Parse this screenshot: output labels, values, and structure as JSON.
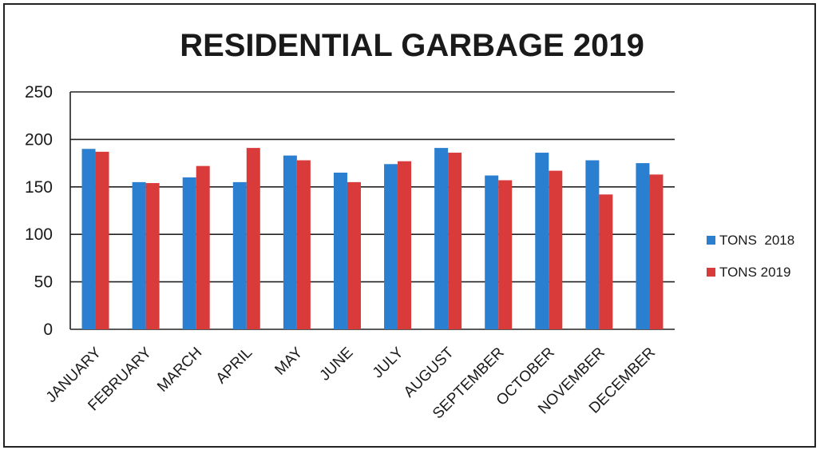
{
  "chart_data": {
    "type": "bar",
    "title": "RESIDENTIAL GARBAGE 2019",
    "xlabel": "",
    "ylabel": "",
    "ylim": [
      0,
      250
    ],
    "yticks": [
      "0",
      "50",
      "100",
      "150",
      "200",
      "250"
    ],
    "grid": "horizontal",
    "legend_position": "right",
    "categories": [
      "JANUARY",
      "FEBRUARY",
      "MARCH",
      "APRIL",
      "MAY",
      "JUNE",
      "JULY",
      "AUGUST",
      "SEPTEMBER",
      "OCTOBER",
      "NOVEMBER",
      "DECEMBER"
    ],
    "series": [
      {
        "name": "TONS  2018",
        "color": "#2b7fd0",
        "values": [
          190,
          155,
          160,
          155,
          183,
          165,
          174,
          191,
          162,
          186,
          178,
          175
        ]
      },
      {
        "name": "TONS 2019",
        "color": "#d93a3a",
        "values": [
          187,
          154,
          172,
          191,
          178,
          155,
          177,
          186,
          157,
          167,
          142,
          163
        ]
      }
    ]
  }
}
